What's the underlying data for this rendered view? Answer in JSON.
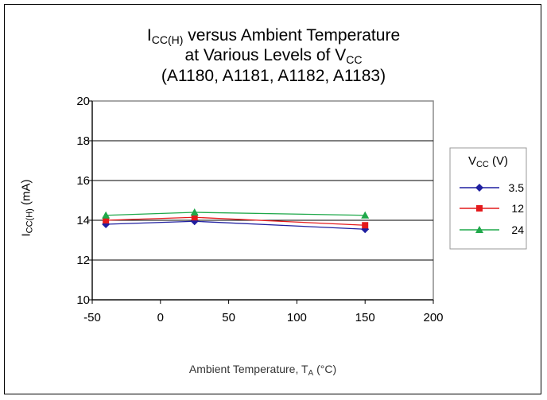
{
  "chart_data": {
    "type": "line",
    "title_line1": {
      "main": "I",
      "sub": "CC(H)",
      "rest": " versus Ambient Temperature"
    },
    "title_line2": {
      "main": "at Various Levels of V",
      "sub": "CC"
    },
    "title_line3": "(A1180, A1181, A1182, A1183)",
    "xlabel": {
      "main": "Ambient Temperature, T",
      "sub": "A",
      "rest": " (°C)"
    },
    "ylabel": {
      "main": "I",
      "sub": "CC(H)",
      "rest": " (mA)"
    },
    "x_ticks": [
      "-50",
      "0",
      "50",
      "100",
      "150",
      "200"
    ],
    "y_ticks": [
      "10",
      "12",
      "14",
      "16",
      "18",
      "20"
    ],
    "xlim": [
      -50,
      200
    ],
    "ylim": [
      10,
      20
    ],
    "grid": "horizontal",
    "legend": {
      "title_main": "V",
      "title_sub": "CC",
      "title_rest": " (V)",
      "placement": "right"
    },
    "x": [
      -40,
      25,
      150
    ],
    "series": [
      {
        "name": "3.5",
        "marker": "diamond",
        "color": "#1f1fa0",
        "values": [
          13.8,
          13.95,
          13.55
        ]
      },
      {
        "name": "12",
        "marker": "square",
        "color": "#e41a1c",
        "values": [
          14.0,
          14.15,
          13.75
        ]
      },
      {
        "name": "24",
        "marker": "triangle",
        "color": "#1fa84a",
        "values": [
          14.25,
          14.4,
          14.25
        ]
      }
    ]
  }
}
